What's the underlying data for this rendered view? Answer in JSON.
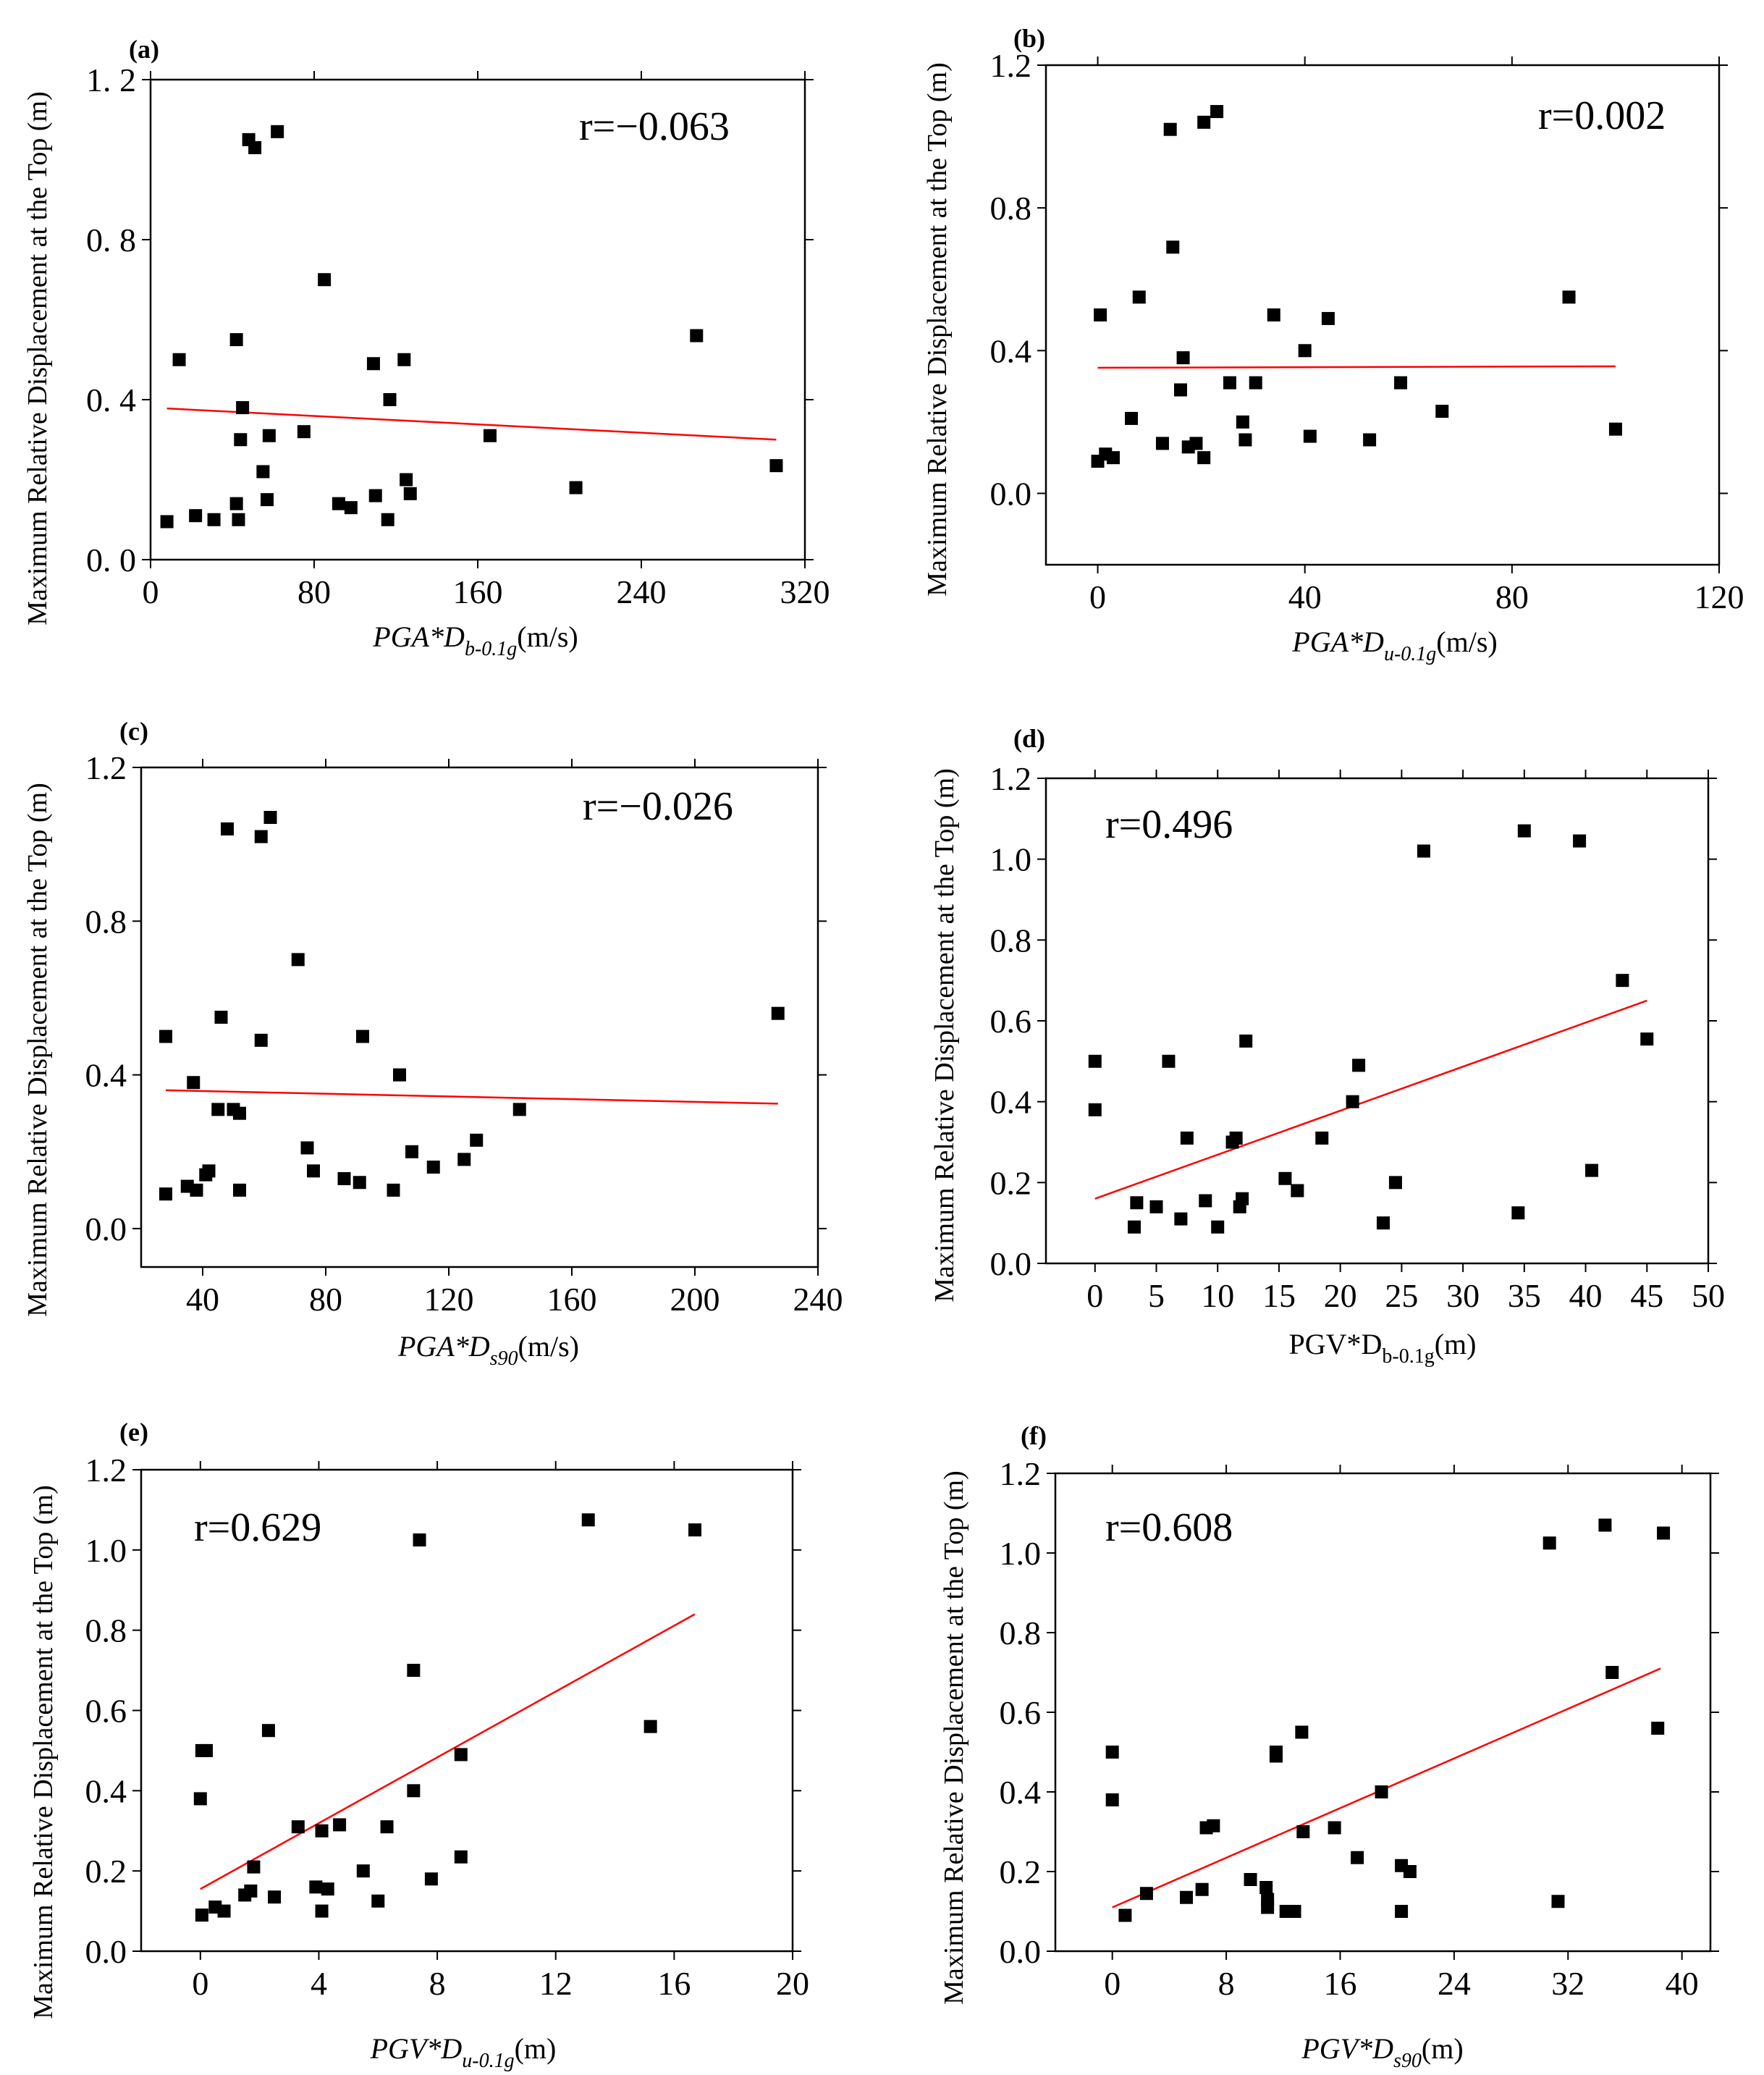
{
  "chart_data": [
    {
      "type": "scatter",
      "panel": "(a)",
      "ylabel": "Maximum Relative Displacement at the Top (m)",
      "xlabel": {
        "main": "PGA*D",
        "sub": "b-0.1g",
        "unit": "(m/s)",
        "italic": true
      },
      "annotation": "r=−0.063",
      "xlim": [
        0,
        320
      ],
      "ylim": [
        0,
        1.2
      ],
      "xticks": [
        0,
        80,
        160,
        240,
        320
      ],
      "xtick_labels": [
        "0",
        "80",
        "160",
        "240",
        "320"
      ],
      "yticks": [
        0,
        0.4,
        0.8,
        1.2
      ],
      "ytick_labels": [
        "0. 0",
        "0. 4",
        "0. 8",
        "1. 2"
      ],
      "trendline": {
        "x": [
          8,
          306
        ],
        "y": [
          0.378,
          0.3
        ],
        "color": "#ff0000"
      },
      "points": [
        [
          8,
          0.095
        ],
        [
          14,
          0.5
        ],
        [
          22,
          0.11
        ],
        [
          31,
          0.1
        ],
        [
          42,
          0.14
        ],
        [
          42,
          0.55
        ],
        [
          43,
          0.1
        ],
        [
          44,
          0.3
        ],
        [
          45,
          0.38
        ],
        [
          48,
          1.05
        ],
        [
          51,
          1.03
        ],
        [
          55,
          0.22
        ],
        [
          57,
          0.15
        ],
        [
          58,
          0.31
        ],
        [
          62,
          1.07
        ],
        [
          75,
          0.32
        ],
        [
          85,
          0.7
        ],
        [
          92,
          0.14
        ],
        [
          98,
          0.13
        ],
        [
          109,
          0.49
        ],
        [
          110,
          0.16
        ],
        [
          116,
          0.1
        ],
        [
          117,
          0.4
        ],
        [
          124,
          0.5
        ],
        [
          125,
          0.2
        ],
        [
          127,
          0.165
        ],
        [
          166,
          0.31
        ],
        [
          208,
          0.18
        ],
        [
          267,
          0.56
        ],
        [
          306,
          0.235
        ]
      ]
    },
    {
      "type": "scatter",
      "panel": "(b)",
      "ylabel": "Maximum Relative Displacement at the Top (m)",
      "xlabel": {
        "main": "PGA*D",
        "sub": "u-0.1g",
        "unit": "(m/s)",
        "italic": true
      },
      "annotation": "r=0.002",
      "xlim": [
        -10,
        120
      ],
      "ylim": [
        -0.2,
        1.2
      ],
      "xticks": [
        0,
        40,
        80,
        120
      ],
      "xtick_labels": [
        "0",
        "40",
        "80",
        "120"
      ],
      "yticks": [
        0.0,
        0.4,
        0.8,
        1.2
      ],
      "ytick_labels": [
        "0.0",
        "0.4",
        "0.8",
        "1.2"
      ],
      "trendline": {
        "x": [
          0,
          100
        ],
        "y": [
          0.352,
          0.356
        ],
        "color": "#ff0000"
      },
      "points": [
        [
          0,
          0.09
        ],
        [
          0.5,
          0.5
        ],
        [
          1.5,
          0.11
        ],
        [
          3,
          0.1
        ],
        [
          6.5,
          0.21
        ],
        [
          8,
          0.55
        ],
        [
          12.5,
          0.14
        ],
        [
          14,
          1.02
        ],
        [
          14.5,
          0.69
        ],
        [
          16,
          0.29
        ],
        [
          16.5,
          0.38
        ],
        [
          17.5,
          0.13
        ],
        [
          19,
          0.14
        ],
        [
          20.5,
          1.04
        ],
        [
          20.5,
          0.1
        ],
        [
          23,
          1.07
        ],
        [
          25.5,
          0.31
        ],
        [
          28,
          0.2
        ],
        [
          28.5,
          0.15
        ],
        [
          30.5,
          0.31
        ],
        [
          34,
          0.5
        ],
        [
          40,
          0.4
        ],
        [
          41,
          0.16
        ],
        [
          44.5,
          0.49
        ],
        [
          52.5,
          0.15
        ],
        [
          58.5,
          0.31
        ],
        [
          66.5,
          0.23
        ],
        [
          91,
          0.55
        ],
        [
          100,
          0.18
        ]
      ]
    },
    {
      "type": "scatter",
      "panel": "(c)",
      "ylabel": "Maximum Relative Displacement at the Top (m)",
      "xlabel": {
        "main": "PGA*D",
        "sub": "s90",
        "unit": "(m/s)",
        "italic": true
      },
      "annotation": "r=−0.026",
      "xlim": [
        20,
        240
      ],
      "ylim": [
        -0.1,
        1.2
      ],
      "xticks": [
        40,
        80,
        120,
        160,
        200,
        240
      ],
      "xtick_labels": [
        "40",
        "80",
        "120",
        "160",
        "200",
        "240"
      ],
      "yticks": [
        0.0,
        0.4,
        0.8,
        1.2
      ],
      "ytick_labels": [
        "0.0",
        "0.4",
        "0.8",
        "1.2"
      ],
      "trendline": {
        "x": [
          28,
          227
        ],
        "y": [
          0.36,
          0.325
        ],
        "color": "#ff0000"
      },
      "points": [
        [
          28,
          0.09
        ],
        [
          28,
          0.5
        ],
        [
          35,
          0.11
        ],
        [
          37,
          0.38
        ],
        [
          38,
          0.1
        ],
        [
          41,
          0.14
        ],
        [
          42,
          0.15
        ],
        [
          45,
          0.31
        ],
        [
          46,
          0.55
        ],
        [
          48,
          1.04
        ],
        [
          50,
          0.31
        ],
        [
          52,
          0.1
        ],
        [
          52,
          0.3
        ],
        [
          59,
          0.49
        ],
        [
          59,
          1.02
        ],
        [
          62,
          1.07
        ],
        [
          71,
          0.7
        ],
        [
          74,
          0.21
        ],
        [
          76,
          0.15
        ],
        [
          86,
          0.13
        ],
        [
          91,
          0.12
        ],
        [
          92,
          0.5
        ],
        [
          102,
          0.1
        ],
        [
          104,
          0.4
        ],
        [
          108,
          0.2
        ],
        [
          115,
          0.16
        ],
        [
          125,
          0.18
        ],
        [
          129,
          0.23
        ],
        [
          143,
          0.31
        ],
        [
          227,
          0.56
        ]
      ]
    },
    {
      "type": "scatter",
      "panel": "(d)",
      "ylabel": "Maximum Relative Displacement at the Top (m)",
      "xlabel": {
        "main": "PGV*D",
        "sub": "b-0.1g",
        "unit": "(m)",
        "italic": false
      },
      "annotation": "r=0.496",
      "xlim": [
        -4,
        50
      ],
      "ylim": [
        0,
        1.2
      ],
      "xticks": [
        0,
        5,
        10,
        15,
        20,
        25,
        30,
        35,
        40,
        45,
        50
      ],
      "xtick_labels": [
        "0",
        "5",
        "10",
        "15",
        "20",
        "25",
        "30",
        "35",
        "40",
        "45",
        "50"
      ],
      "yticks": [
        0.0,
        0.2,
        0.4,
        0.6,
        0.8,
        1.0,
        1.2
      ],
      "ytick_labels": [
        "0.0",
        "0.2",
        "0.4",
        "0.6",
        "0.8",
        "1.0",
        "1.2"
      ],
      "trendline": {
        "x": [
          0,
          45
        ],
        "y": [
          0.16,
          0.65
        ],
        "color": "#ff0000"
      },
      "points": [
        [
          0,
          0.38
        ],
        [
          0,
          0.5
        ],
        [
          3.2,
          0.09
        ],
        [
          3.4,
          0.15
        ],
        [
          5,
          0.14
        ],
        [
          6,
          0.5
        ],
        [
          7,
          0.11
        ],
        [
          7.5,
          0.31
        ],
        [
          9,
          0.155
        ],
        [
          10,
          0.09
        ],
        [
          11.2,
          0.3
        ],
        [
          11.5,
          0.31
        ],
        [
          11.8,
          0.14
        ],
        [
          12,
          0.16
        ],
        [
          12.3,
          0.55
        ],
        [
          15.5,
          0.21
        ],
        [
          16.5,
          0.18
        ],
        [
          18.5,
          0.31
        ],
        [
          21,
          0.4
        ],
        [
          21.5,
          0.49
        ],
        [
          23.5,
          0.1
        ],
        [
          24.5,
          0.2
        ],
        [
          26.8,
          1.02
        ],
        [
          34.5,
          0.125
        ],
        [
          35,
          1.07
        ],
        [
          39.5,
          1.045
        ],
        [
          40.5,
          0.23
        ],
        [
          43,
          0.7
        ],
        [
          45,
          0.555
        ]
      ]
    },
    {
      "type": "scatter",
      "panel": "(e)",
      "ylabel": "Maximum Relative Displacement at the Top (m)",
      "xlabel": {
        "main": "PGV*D",
        "sub": "u-0.1g",
        "unit": "(m)",
        "italic": true
      },
      "annotation": "r=0.629",
      "xlim": [
        -2,
        20
      ],
      "ylim": [
        0,
        1.2
      ],
      "xticks": [
        0,
        4,
        8,
        12,
        16,
        20
      ],
      "xtick_labels": [
        "0",
        "4",
        "8",
        "12",
        "16",
        "20"
      ],
      "yticks": [
        0.0,
        0.2,
        0.4,
        0.6,
        0.8,
        1.0,
        1.2
      ],
      "ytick_labels": [
        "0.0",
        "0.2",
        "0.4",
        "0.6",
        "0.8",
        "1.0",
        "1.2"
      ],
      "trendline": {
        "x": [
          0,
          16.7
        ],
        "y": [
          0.155,
          0.84
        ],
        "color": "#ff0000"
      },
      "points": [
        [
          0,
          0.38
        ],
        [
          0.05,
          0.09
        ],
        [
          0.05,
          0.5
        ],
        [
          0.2,
          0.5
        ],
        [
          0.5,
          0.11
        ],
        [
          0.8,
          0.1
        ],
        [
          1.5,
          0.14
        ],
        [
          1.7,
          0.15
        ],
        [
          1.8,
          0.21
        ],
        [
          2.3,
          0.55
        ],
        [
          2.5,
          0.135
        ],
        [
          3.3,
          0.31
        ],
        [
          3.9,
          0.16
        ],
        [
          4.1,
          0.3
        ],
        [
          4.1,
          0.1
        ],
        [
          4.3,
          0.155
        ],
        [
          4.7,
          0.315
        ],
        [
          5.5,
          0.2
        ],
        [
          6,
          0.125
        ],
        [
          6.3,
          0.31
        ],
        [
          7.2,
          0.4
        ],
        [
          7.2,
          0.7
        ],
        [
          7.4,
          1.025
        ],
        [
          7.8,
          0.18
        ],
        [
          8.8,
          0.49
        ],
        [
          8.8,
          0.235
        ],
        [
          13.1,
          1.075
        ],
        [
          15.2,
          0.56
        ],
        [
          16.7,
          1.05
        ]
      ]
    },
    {
      "type": "scatter",
      "panel": "(f)",
      "ylabel": "Maximum Relative Displacement at the Top (m)",
      "xlabel": {
        "main": "PGV*D",
        "sub": "s90",
        "unit": "(m)",
        "italic": true
      },
      "annotation": "r=0.608",
      "xlim": [
        -4,
        42
      ],
      "ylim": [
        0,
        1.2
      ],
      "xticks": [
        0,
        8,
        16,
        24,
        32,
        40
      ],
      "xtick_labels": [
        "0",
        "8",
        "16",
        "24",
        "32",
        "40"
      ],
      "yticks": [
        0.0,
        0.2,
        0.4,
        0.6,
        0.8,
        1.0,
        1.2
      ],
      "ytick_labels": [
        "0.0",
        "0.2",
        "0.4",
        "0.6",
        "0.8",
        "1.0",
        "1.2"
      ],
      "trendline": {
        "x": [
          0,
          38.5
        ],
        "y": [
          0.11,
          0.71
        ],
        "color": "#ff0000"
      },
      "points": [
        [
          0,
          0.38
        ],
        [
          0,
          0.5
        ],
        [
          0.9,
          0.09
        ],
        [
          2.4,
          0.145
        ],
        [
          5.2,
          0.135
        ],
        [
          6.3,
          0.155
        ],
        [
          6.6,
          0.31
        ],
        [
          7.1,
          0.315
        ],
        [
          9.7,
          0.18
        ],
        [
          10.8,
          0.16
        ],
        [
          10.9,
          0.13
        ],
        [
          10.9,
          0.11
        ],
        [
          11.5,
          0.49
        ],
        [
          11.5,
          0.5
        ],
        [
          12.2,
          0.1
        ],
        [
          12.8,
          0.1
        ],
        [
          13.3,
          0.55
        ],
        [
          13.4,
          0.3
        ],
        [
          15.6,
          0.31
        ],
        [
          17.2,
          0.235
        ],
        [
          18.9,
          0.4
        ],
        [
          20.3,
          0.215
        ],
        [
          20.3,
          0.1
        ],
        [
          20.9,
          0.2
        ],
        [
          30.7,
          1.025
        ],
        [
          31.3,
          0.125
        ],
        [
          34.6,
          1.07
        ],
        [
          35.1,
          0.7
        ],
        [
          38.3,
          0.56
        ],
        [
          38.7,
          1.05
        ]
      ]
    }
  ]
}
